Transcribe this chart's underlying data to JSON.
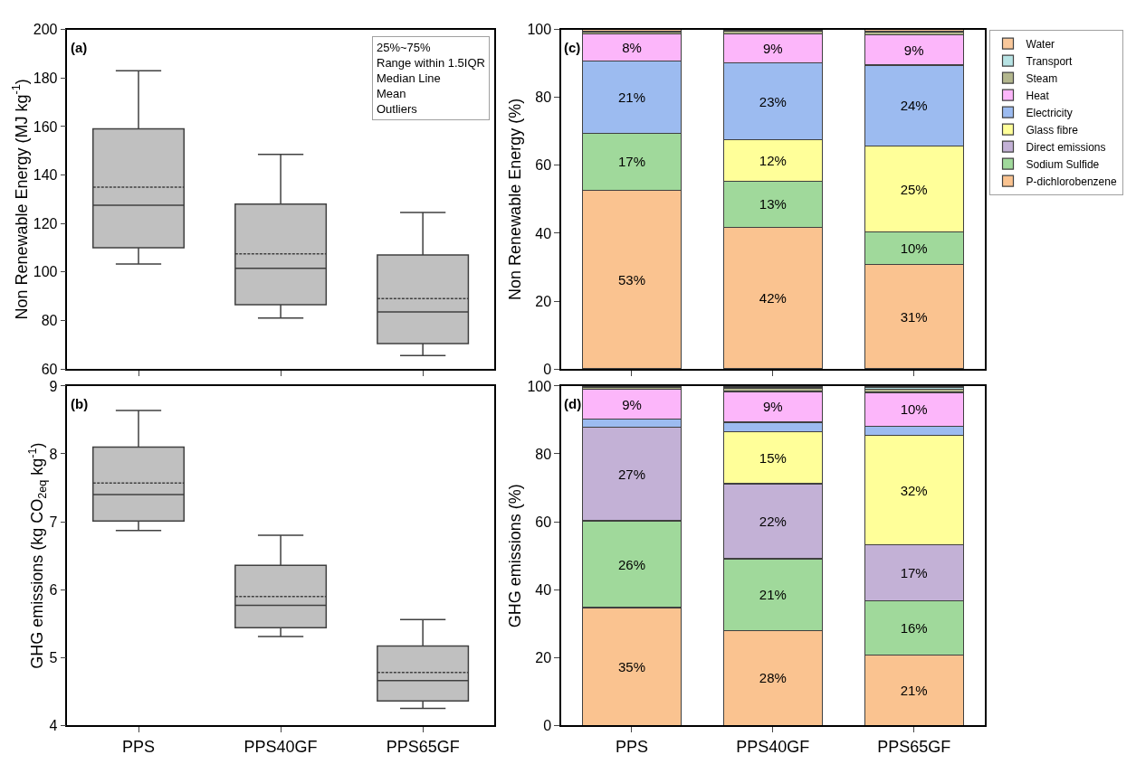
{
  "chart_data": [
    {
      "type": "box",
      "ylabel": "Non Renewable Energy (MJ kg$^{-1}$)",
      "categories": [
        "PPS",
        "PPS40GF",
        "PPS65GF"
      ],
      "color": "#c0c0c0",
      "boxes": [
        {
          "low": 103.3,
          "q1": 110,
          "median": 127.5,
          "q3": 159,
          "high": 183,
          "mean": 135
        },
        {
          "low": 81,
          "q1": 86.5,
          "median": 101.5,
          "q3": 128,
          "high": 148.5,
          "mean": 107.5
        },
        {
          "low": 65.5,
          "q1": 70.5,
          "median": 83.5,
          "q3": 107,
          "high": 124.5,
          "mean": 89
        }
      ],
      "ylim": [
        60,
        200
      ],
      "yticks": [
        60,
        80,
        100,
        120,
        140,
        160,
        180,
        200
      ],
      "tick_labels": "y",
      "annotations": [
        "(a)",
        "25%~75%",
        "Range within 1.5IQR",
        "Median Line",
        "Mean",
        "Outliers"
      ]
    },
    {
      "type": "bar",
      "stacked": true,
      "ylabel": "Non Renewable Energy (%)",
      "categories": [
        "PPS",
        "PPS40GF",
        "PPS65GF"
      ],
      "ylim": [
        0,
        100
      ],
      "yticks": [
        0,
        20,
        40,
        60,
        80,
        100
      ],
      "tick_labels": "y",
      "legend": "right",
      "annotations": [
        "(c)"
      ],
      "series": [
        {
          "name": "P-dichlorobenzene",
          "color": "#fac390",
          "values": [
            52.7,
            41.8,
            30.7
          ],
          "value_labels": [
            "53%",
            "42%",
            "31%"
          ]
        },
        {
          "name": "Sodium Sulfide",
          "color": "#a0d99b",
          "values": [
            16.8,
            13.5,
            9.6
          ],
          "value_labels": [
            "17%",
            "13%",
            "10%"
          ]
        },
        {
          "name": "Glass fibre",
          "color": "#ffff99",
          "values": [
            0,
            12.2,
            25.3
          ],
          "value_labels": [
            null,
            "12%",
            "25%"
          ]
        },
        {
          "name": "Electricity",
          "color": "#9cbbf0",
          "values": [
            21.3,
            22.6,
            23.9
          ],
          "value_labels": [
            "21%",
            "23%",
            "24%"
          ]
        },
        {
          "name": "Heat",
          "color": "#fcb6fa",
          "values": [
            7.9,
            8.6,
            8.9
          ],
          "value_labels": [
            "8%",
            "9%",
            "9%"
          ]
        },
        {
          "name": "Steam",
          "color": "#b3b78e",
          "values": [
            0.6,
            0.7,
            0.9
          ],
          "value_labels": [
            null,
            null,
            null
          ]
        },
        {
          "name": "Transport",
          "color": "#b7e3e4",
          "values": [
            0.3,
            0.3,
            0.3
          ],
          "value_labels": [
            null,
            null,
            null
          ]
        },
        {
          "name": "Water",
          "color": "#f9c89b",
          "values": [
            0.4,
            0.3,
            0.4
          ],
          "value_labels": [
            null,
            null,
            null
          ]
        }
      ]
    },
    {
      "type": "box",
      "ylabel": "GHG emissions (kg CO$_{2eq}$ kg$^{-1}$)",
      "categories": [
        "PPS",
        "PPS40GF",
        "PPS65GF"
      ],
      "color": "#c0c0c0",
      "boxes": [
        {
          "low": 6.87,
          "q1": 7.01,
          "median": 7.4,
          "q3": 8.1,
          "high": 8.64,
          "mean": 7.57
        },
        {
          "low": 5.31,
          "q1": 5.44,
          "median": 5.77,
          "q3": 6.36,
          "high": 6.8,
          "mean": 5.9
        },
        {
          "low": 4.25,
          "q1": 4.36,
          "median": 4.66,
          "q3": 5.17,
          "high": 5.56,
          "mean": 4.78
        }
      ],
      "ylim": [
        4,
        9
      ],
      "yticks": [
        4,
        5,
        6,
        7,
        8,
        9
      ],
      "annotations": [
        "(b)"
      ]
    },
    {
      "type": "bar",
      "stacked": true,
      "ylabel": "GHG emissions (%)",
      "categories": [
        "PPS",
        "PPS40GF",
        "PPS65GF"
      ],
      "ylim": [
        0,
        100
      ],
      "yticks": [
        0,
        20,
        40,
        60,
        80,
        100
      ],
      "annotations": [
        "(d)"
      ],
      "series": [
        {
          "name": "P-dichlorobenzene",
          "color": "#fac390",
          "values": [
            34.7,
            28.0,
            20.8
          ],
          "value_labels": [
            "35%",
            "28%",
            "21%"
          ]
        },
        {
          "name": "Sodium Sulfide",
          "color": "#a0d99b",
          "values": [
            25.6,
            21.1,
            15.9
          ],
          "value_labels": [
            "26%",
            "21%",
            "16%"
          ]
        },
        {
          "name": "Direct emissions",
          "color": "#c3b1d6",
          "values": [
            27.5,
            22.1,
            16.5
          ],
          "value_labels": [
            "27%",
            "22%",
            "17%"
          ]
        },
        {
          "name": "Glass fibre",
          "color": "#ffff99",
          "values": [
            0,
            15.4,
            32.2
          ],
          "value_labels": [
            null,
            "15%",
            "32%"
          ]
        },
        {
          "name": "Electricity",
          "color": "#9cbbf0",
          "values": [
            2.4,
            2.7,
            2.8
          ],
          "value_labels": [
            null,
            null,
            null
          ]
        },
        {
          "name": "Heat",
          "color": "#fcb6fa",
          "values": [
            8.8,
            9.1,
            9.9
          ],
          "value_labels": [
            "9%",
            "9%",
            "10%"
          ]
        },
        {
          "name": "Steam",
          "color": "#b3b78e",
          "values": [
            0.5,
            0.9,
            1.0
          ],
          "value_labels": [
            null,
            null,
            null
          ]
        },
        {
          "name": "Transport",
          "color": "#b7e3e4",
          "values": [
            0.2,
            0.3,
            0.4
          ],
          "value_labels": [
            null,
            null,
            null
          ]
        },
        {
          "name": "Water",
          "color": "#f9c89b",
          "values": [
            0.3,
            0.4,
            0.5
          ],
          "value_labels": [
            null,
            null,
            null
          ]
        }
      ]
    }
  ]
}
